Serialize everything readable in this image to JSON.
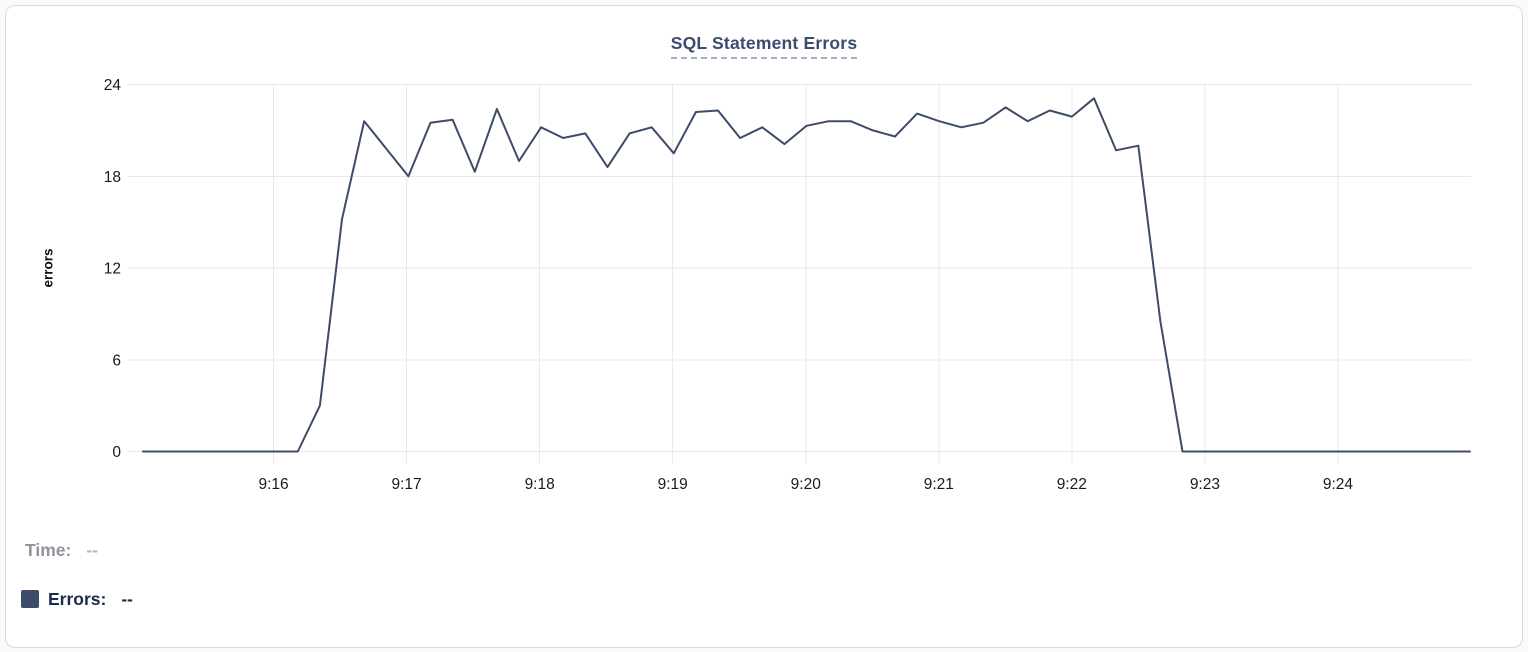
{
  "chart": {
    "title": "SQL Statement Errors",
    "ylabel": "errors",
    "legend": {
      "time_label": "Time:",
      "time_value": "--",
      "errors_label": "Errors:",
      "errors_value": "--"
    },
    "colors": {
      "title": "#3e4b71",
      "title_underline": "#a7aec6",
      "line": "#3e4c69",
      "legend_time_label": "#8f939b",
      "legend_errors": "#1d2a50",
      "grid": "#e9e9e9",
      "tick_text": "#1a1a1a",
      "card_border": "#dcdcdf"
    }
  },
  "chart_data": {
    "type": "line",
    "title": "SQL Statement Errors",
    "xlabel": "",
    "ylabel": "errors",
    "x_start": "9:15:00",
    "x_end": "9:25:00",
    "sample_interval_seconds": 10,
    "x_ticks": [
      "9:16",
      "9:17",
      "9:18",
      "9:19",
      "9:20",
      "9:21",
      "9:22",
      "9:23",
      "9:24"
    ],
    "y_ticks": [
      0,
      6,
      12,
      18,
      24
    ],
    "ylim": [
      0,
      24
    ],
    "grid": true,
    "legend_position": "bottom-left",
    "series": [
      {
        "name": "Errors",
        "color": "#3e4c69",
        "values": [
          0,
          0,
          0,
          0,
          0,
          0,
          0,
          0,
          3,
          15.2,
          21.6,
          19.8,
          18,
          21.5,
          21.7,
          18.3,
          22.4,
          19,
          21.2,
          20.5,
          20.8,
          18.6,
          20.8,
          21.2,
          19.5,
          22.2,
          22.3,
          20.5,
          21.2,
          20.1,
          21.3,
          21.6,
          21.6,
          21,
          20.6,
          22.1,
          21.6,
          21.2,
          21.5,
          22.5,
          21.6,
          22.3,
          21.9,
          23.1,
          19.7,
          20,
          8.5,
          0,
          0,
          0,
          0,
          0,
          0,
          0,
          0,
          0,
          0,
          0,
          0,
          0,
          0
        ]
      }
    ]
  }
}
